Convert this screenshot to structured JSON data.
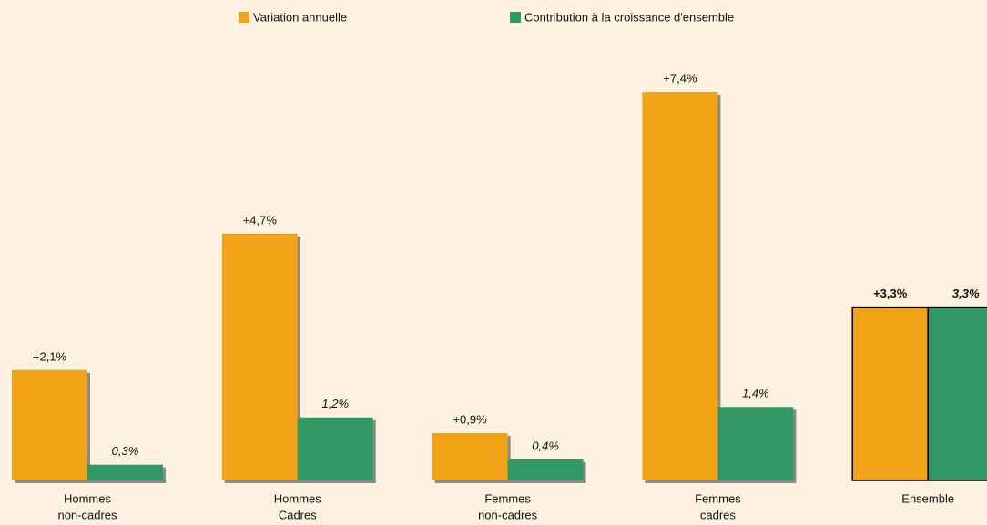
{
  "chart_data": {
    "type": "bar",
    "categories": [
      [
        "Hommes",
        "non-cadres"
      ],
      [
        "Hommes",
        "Cadres"
      ],
      [
        "Femmes",
        "non-cadres"
      ],
      [
        "Femmes",
        "cadres"
      ],
      [
        "Ensemble"
      ]
    ],
    "series": [
      {
        "name": "Variation annuelle",
        "color": "#f2a216",
        "values": [
          2.1,
          4.7,
          0.9,
          7.4,
          3.3
        ],
        "value_labels": [
          "+2,1%",
          "+4,7%",
          "+0,9%",
          "+7,4%",
          "+3,3%"
        ]
      },
      {
        "name": "Contribution à la croissance d'ensemble",
        "color": "#329966",
        "values": [
          0.3,
          1.2,
          0.4,
          1.4,
          3.3
        ],
        "value_labels": [
          "0,3%",
          "1,2%",
          "0,4%",
          "1,4%",
          "3,3%"
        ]
      }
    ],
    "ylim": [
      0,
      7.5
    ],
    "legend": "top"
  }
}
